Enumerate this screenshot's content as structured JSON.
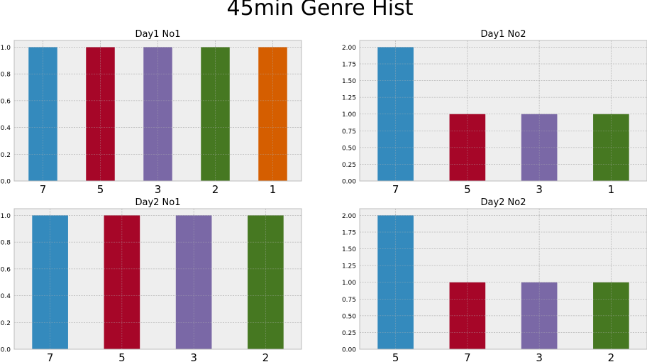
{
  "figure": {
    "title": "45min Genre Hist"
  },
  "colors": {
    "background": "#eeeeee",
    "grid": "#b2b2b2",
    "spine": "#bcbcbc",
    "palette": [
      "#348abd",
      "#a60628",
      "#7a68a6",
      "#467821",
      "#d55e00"
    ]
  },
  "chart_data": [
    {
      "type": "bar",
      "title": "Day1 No1",
      "categories": [
        "7",
        "5",
        "3",
        "2",
        "1"
      ],
      "values": [
        1,
        1,
        1,
        1,
        1
      ],
      "ylim": [
        0,
        1.05
      ],
      "yticks": [
        "0.0",
        "0.2",
        "0.4",
        "0.6",
        "0.8",
        "1.0"
      ],
      "ytick_values": [
        0,
        0.2,
        0.4,
        0.6,
        0.8,
        1.0
      ],
      "grid": true
    },
    {
      "type": "bar",
      "title": "Day1 No2",
      "categories": [
        "7",
        "5",
        "3",
        "1"
      ],
      "values": [
        2,
        1,
        1,
        1
      ],
      "ylim": [
        0,
        2.1
      ],
      "yticks": [
        "0.00",
        "0.25",
        "0.50",
        "0.75",
        "1.00",
        "1.25",
        "1.50",
        "1.75",
        "2.00"
      ],
      "ytick_values": [
        0,
        0.25,
        0.5,
        0.75,
        1.0,
        1.25,
        1.5,
        1.75,
        2.0
      ],
      "grid": true
    },
    {
      "type": "bar",
      "title": "Day2 No1",
      "categories": [
        "7",
        "5",
        "3",
        "2"
      ],
      "values": [
        1,
        1,
        1,
        1
      ],
      "ylim": [
        0,
        1.05
      ],
      "yticks": [
        "0.0",
        "0.2",
        "0.4",
        "0.6",
        "0.8",
        "1.0"
      ],
      "ytick_values": [
        0,
        0.2,
        0.4,
        0.6,
        0.8,
        1.0
      ],
      "grid": true
    },
    {
      "type": "bar",
      "title": "Day2 No2",
      "categories": [
        "5",
        "7",
        "3",
        "2"
      ],
      "values": [
        2,
        1,
        1,
        1
      ],
      "ylim": [
        0,
        2.1
      ],
      "yticks": [
        "0.00",
        "0.25",
        "0.50",
        "0.75",
        "1.00",
        "1.25",
        "1.50",
        "1.75",
        "2.00"
      ],
      "ytick_values": [
        0,
        0.25,
        0.5,
        0.75,
        1.0,
        1.25,
        1.5,
        1.75,
        2.0
      ],
      "grid": true
    }
  ]
}
